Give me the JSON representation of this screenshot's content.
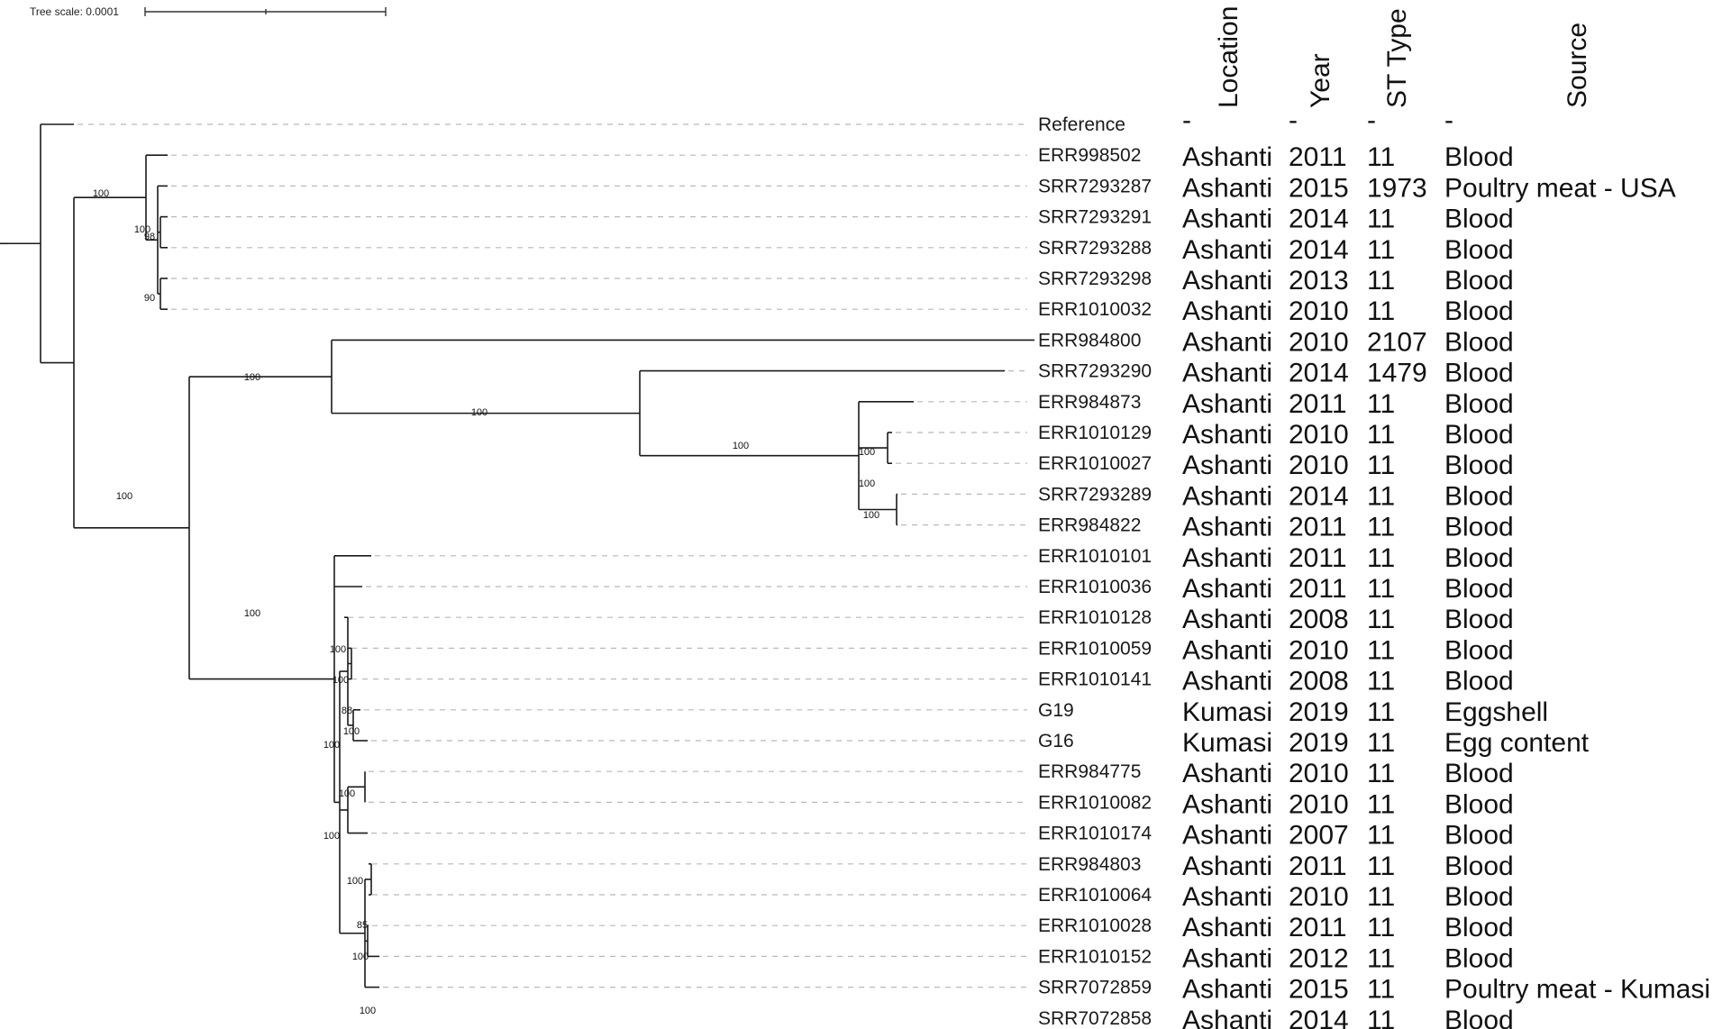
{
  "scale_bar": {
    "label": "Tree scale: 0.0001"
  },
  "columns": [
    "Location",
    "Year",
    "ST Type",
    "Source"
  ],
  "taxa": [
    {
      "name": "Reference",
      "location": "-",
      "year": "-",
      "st": "-",
      "source": "-"
    },
    {
      "name": "ERR998502",
      "location": "Ashanti",
      "year": "2011",
      "st": "11",
      "source": "Blood"
    },
    {
      "name": "SRR7293287",
      "location": "Ashanti",
      "year": "2015",
      "st": "1973",
      "source": "Poultry meat - USA"
    },
    {
      "name": "SRR7293291",
      "location": "Ashanti",
      "year": "2014",
      "st": "11",
      "source": "Blood"
    },
    {
      "name": "SRR7293288",
      "location": "Ashanti",
      "year": "2014",
      "st": "11",
      "source": "Blood"
    },
    {
      "name": "SRR7293298",
      "location": "Ashanti",
      "year": "2013",
      "st": "11",
      "source": "Blood"
    },
    {
      "name": "ERR1010032",
      "location": "Ashanti",
      "year": "2010",
      "st": "11",
      "source": "Blood"
    },
    {
      "name": "ERR984800",
      "location": "Ashanti",
      "year": "2010",
      "st": "2107",
      "source": "Blood"
    },
    {
      "name": "SRR7293290",
      "location": "Ashanti",
      "year": "2014",
      "st": "1479",
      "source": "Blood"
    },
    {
      "name": "ERR984873",
      "location": "Ashanti",
      "year": "2011",
      "st": "11",
      "source": "Blood"
    },
    {
      "name": "ERR1010129",
      "location": "Ashanti",
      "year": "2010",
      "st": "11",
      "source": "Blood"
    },
    {
      "name": "ERR1010027",
      "location": "Ashanti",
      "year": "2010",
      "st": "11",
      "source": "Blood"
    },
    {
      "name": "SRR7293289",
      "location": "Ashanti",
      "year": "2014",
      "st": "11",
      "source": "Blood"
    },
    {
      "name": "ERR984822",
      "location": "Ashanti",
      "year": "2011",
      "st": "11",
      "source": "Blood"
    },
    {
      "name": "ERR1010101",
      "location": "Ashanti",
      "year": "2011",
      "st": "11",
      "source": "Blood"
    },
    {
      "name": "ERR1010036",
      "location": "Ashanti",
      "year": "2011",
      "st": "11",
      "source": "Blood"
    },
    {
      "name": "ERR1010128",
      "location": "Ashanti",
      "year": "2008",
      "st": "11",
      "source": "Blood"
    },
    {
      "name": "ERR1010059",
      "location": "Ashanti",
      "year": "2010",
      "st": "11",
      "source": "Blood"
    },
    {
      "name": "ERR1010141",
      "location": "Ashanti",
      "year": "2008",
      "st": "11",
      "source": "Blood"
    },
    {
      "name": "G19",
      "location": "Kumasi",
      "year": "2019",
      "st": "11",
      "source": "Eggshell"
    },
    {
      "name": "G16",
      "location": "Kumasi",
      "year": "2019",
      "st": "11",
      "source": "Egg content"
    },
    {
      "name": "ERR984775",
      "location": "Ashanti",
      "year": "2010",
      "st": "11",
      "source": "Blood"
    },
    {
      "name": "ERR1010082",
      "location": "Ashanti",
      "year": "2010",
      "st": "11",
      "source": "Blood"
    },
    {
      "name": "ERR1010174",
      "location": "Ashanti",
      "year": "2007",
      "st": "11",
      "source": "Blood"
    },
    {
      "name": "ERR984803",
      "location": "Ashanti",
      "year": "2011",
      "st": "11",
      "source": "Blood"
    },
    {
      "name": "ERR1010064",
      "location": "Ashanti",
      "year": "2010",
      "st": "11",
      "source": "Blood"
    },
    {
      "name": "ERR1010028",
      "location": "Ashanti",
      "year": "2011",
      "st": "11",
      "source": "Blood"
    },
    {
      "name": "ERR1010152",
      "location": "Ashanti",
      "year": "2012",
      "st": "11",
      "source": "Blood"
    },
    {
      "name": "SRR7072859",
      "location": "Ashanti",
      "year": "2015",
      "st": "11",
      "source": "Poultry meat - Kumasi"
    },
    {
      "name": "SRR7072858",
      "location": "Ashanti",
      "year": "2014",
      "st": "11",
      "source": "Blood"
    }
  ],
  "bootstrap_values": [
    "100",
    "100",
    "98",
    "90",
    "100",
    "100",
    "100",
    "100",
    "100",
    "100",
    "100",
    "100",
    "100",
    "100",
    "88",
    "100",
    "100",
    "100",
    "100",
    "100",
    "85",
    "100",
    "100"
  ]
}
